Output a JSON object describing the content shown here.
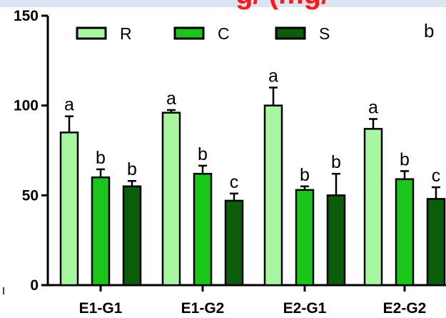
{
  "heading_fragment": "g/ (mg/",
  "chart_data": {
    "type": "bar",
    "panel_label": "b",
    "categories": [
      "E1-G1",
      "E1-G2",
      "E2-G1",
      "E2-G2"
    ],
    "ylim": [
      0,
      150
    ],
    "yticks": [
      0,
      50,
      100,
      150
    ],
    "xlabel": "",
    "ylabel": "",
    "legend": {
      "position": "top-left",
      "orientation": "horizontal"
    },
    "grid": false,
    "series": [
      {
        "name": "R",
        "color": "#a6f7a0",
        "values": [
          85,
          96,
          100,
          87
        ],
        "errors": [
          9,
          1.5,
          10,
          5.5
        ],
        "significance": [
          "a",
          "a",
          "a",
          "a"
        ]
      },
      {
        "name": "C",
        "color": "#19c619",
        "values": [
          60,
          62,
          53,
          59
        ],
        "errors": [
          4.5,
          4.5,
          2,
          4.5
        ],
        "significance": [
          "b",
          "b",
          "b",
          "b"
        ]
      },
      {
        "name": "S",
        "color": "#0b5c0b",
        "values": [
          55,
          47,
          50,
          48
        ],
        "errors": [
          3,
          4,
          12,
          6.5
        ],
        "significance": [
          "b",
          "c",
          "b",
          "c"
        ]
      }
    ]
  }
}
